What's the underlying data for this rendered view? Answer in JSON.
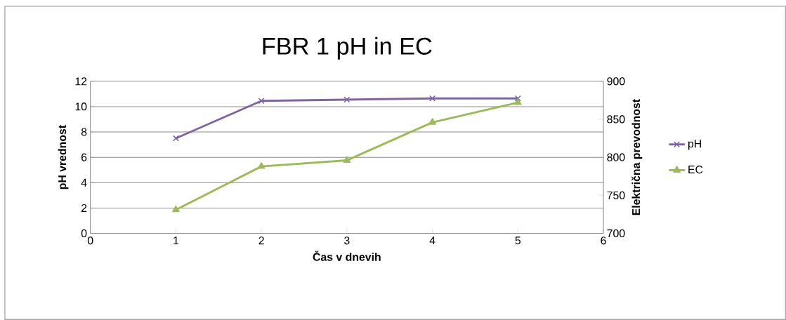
{
  "chart_data": {
    "type": "line",
    "title": "FBR 1 pH  in EC",
    "xlabel": "Čas v dnevih",
    "ylabel": "pH vrednost",
    "y2label": "Električna prevodnost",
    "x": [
      1,
      2,
      3,
      4,
      5
    ],
    "xlim": [
      0,
      6
    ],
    "xticks": [
      0,
      1,
      2,
      3,
      4,
      5,
      6
    ],
    "ylim": [
      0,
      12
    ],
    "yticks": [
      0,
      2,
      4,
      6,
      8,
      10,
      12
    ],
    "y2lim": [
      700,
      900
    ],
    "y2ticks": [
      700,
      750,
      800,
      850,
      900
    ],
    "grid": "y",
    "legend": "right",
    "series": [
      {
        "name": "pH",
        "color": "#8064a2",
        "marker": "cross",
        "values": [
          7.5,
          10.45,
          10.55,
          10.65,
          10.65
        ]
      },
      {
        "name": "EC",
        "color": "#9bbb59",
        "marker": "triangle",
        "axis": "y2",
        "values": [
          731,
          788,
          796,
          846,
          872
        ]
      }
    ]
  }
}
